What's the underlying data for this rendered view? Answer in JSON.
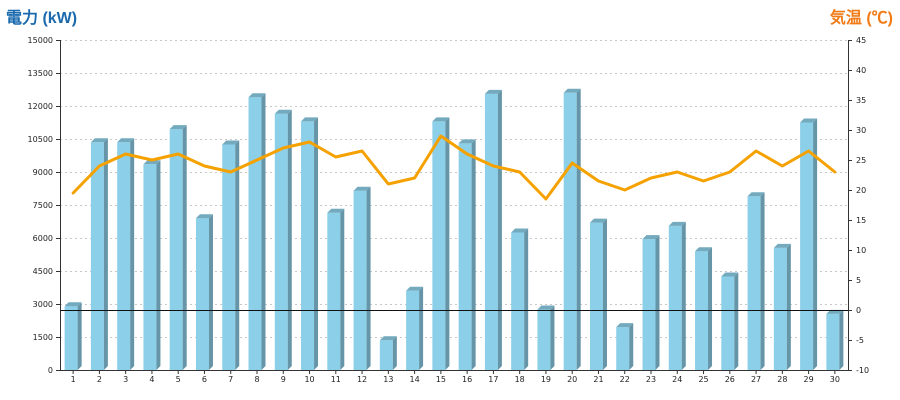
{
  "chart_data": {
    "type": "bar+line",
    "categories": [
      "1",
      "2",
      "3",
      "4",
      "5",
      "6",
      "7",
      "8",
      "9",
      "10",
      "11",
      "12",
      "13",
      "14",
      "15",
      "16",
      "17",
      "18",
      "19",
      "20",
      "21",
      "22",
      "23",
      "24",
      "25",
      "26",
      "27",
      "28",
      "29",
      "30"
    ],
    "left_axis": {
      "title": "電力 (kW)",
      "color": "#1a6aad",
      "range": [
        0,
        15000
      ],
      "ticks": [
        0,
        1500,
        3000,
        4500,
        6000,
        7500,
        9000,
        10500,
        12000,
        13500,
        15000
      ]
    },
    "right_axis": {
      "title": "気温 (℃)",
      "color": "#f07b17",
      "range": [
        -10,
        45
      ],
      "ticks": [
        -10,
        -5,
        0,
        5,
        10,
        15,
        20,
        25,
        30,
        35,
        40,
        45
      ]
    },
    "reference_line": {
      "axis": "right",
      "value": 0
    },
    "grid": "horizontal dashed",
    "series": [
      {
        "type": "bar",
        "axis": "left",
        "color": "#8ccfe8",
        "values": [
          2900,
          10350,
          10350,
          9350,
          10950,
          6900,
          10250,
          12400,
          11650,
          11300,
          7150,
          8150,
          1350,
          3600,
          11300,
          10300,
          12550,
          6250,
          2750,
          12600,
          6700,
          1950,
          5950,
          6550,
          5400,
          4250,
          7900,
          5550,
          11250,
          2550
        ]
      },
      {
        "type": "line",
        "axis": "right",
        "color": "#f5a100",
        "values": [
          19.5,
          24.0,
          26.0,
          25.0,
          26.0,
          24.0,
          23.0,
          25.0,
          27.0,
          28.0,
          25.5,
          26.5,
          21.0,
          22.0,
          29.0,
          26.0,
          24.0,
          23.0,
          18.5,
          24.5,
          21.5,
          20.0,
          22.0,
          23.0,
          21.5,
          23.0,
          26.5,
          24.0,
          26.5,
          23.0
        ]
      }
    ]
  }
}
